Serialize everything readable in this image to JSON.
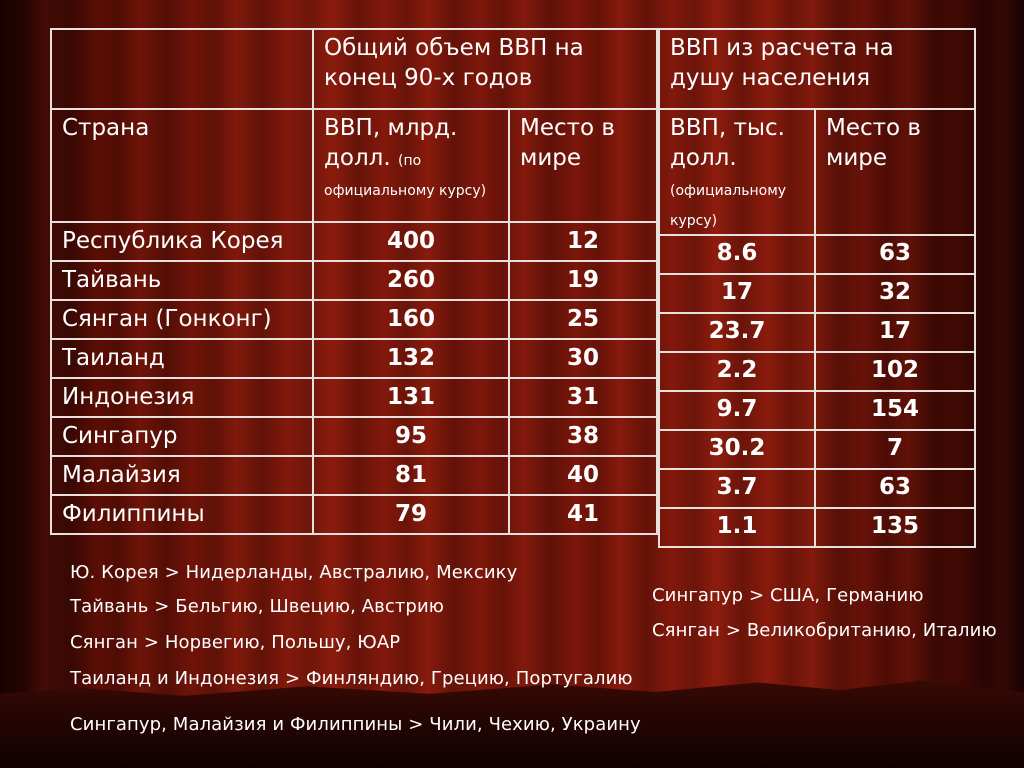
{
  "left_table": {
    "group_header": "Общий объем ВВП на конец 90-х годов",
    "country_header": "Страна",
    "gdp_header": "ВВП, млрд. долл.",
    "gdp_header_note": "(по официальному курсу)",
    "place_header": "Место в мире",
    "rows": [
      {
        "country": "Республика Корея",
        "gdp": "400",
        "place": "12"
      },
      {
        "country": "Тайвань",
        "gdp": "260",
        "place": "19"
      },
      {
        "country": "Сянган (Гонконг)",
        "gdp": "160",
        "place": "25"
      },
      {
        "country": "Таиланд",
        "gdp": "132",
        "place": "30"
      },
      {
        "country": "Индонезия",
        "gdp": "131",
        "place": "31"
      },
      {
        "country": "Сингапур",
        "gdp": "95",
        "place": "38"
      },
      {
        "country": "Малайзия",
        "gdp": "81",
        "place": "40"
      },
      {
        "country": "Филиппины",
        "gdp": "79",
        "place": "41"
      }
    ]
  },
  "right_table": {
    "group_header": "ВВП из расчета на душу населения",
    "gdp_header": "ВВП, тыс. долл.",
    "gdp_header_note": "(официальному курсу)",
    "place_header": "Место в мире",
    "rows": [
      {
        "gdp": "8.6",
        "place": "63"
      },
      {
        "gdp": "17",
        "place": "32"
      },
      {
        "gdp": "23.7",
        "place": "17"
      },
      {
        "gdp": "2.2",
        "place": "102"
      },
      {
        "gdp": "9.7",
        "place": "154"
      },
      {
        "gdp": "30.2",
        "place": "7"
      },
      {
        "gdp": "3.7",
        "place": "63"
      },
      {
        "gdp": "1.1",
        "place": "135"
      }
    ]
  },
  "notes_left": [
    "Ю. Корея > Нидерланды, Австралию, Мексику",
    "Тайвань > Бельгию, Швецию, Австрию",
    "Сянган > Норвегию, Польшу, ЮАР",
    "Таиланд и Индонезия > Финляндию, Грецию, Португалию",
    "Сингапур, Малайзия и Филиппины > Чили, Чехию, Украину"
  ],
  "notes_right": [
    "Сингапур > США, Германию",
    "Сянган > Великобританию, Италию"
  ]
}
